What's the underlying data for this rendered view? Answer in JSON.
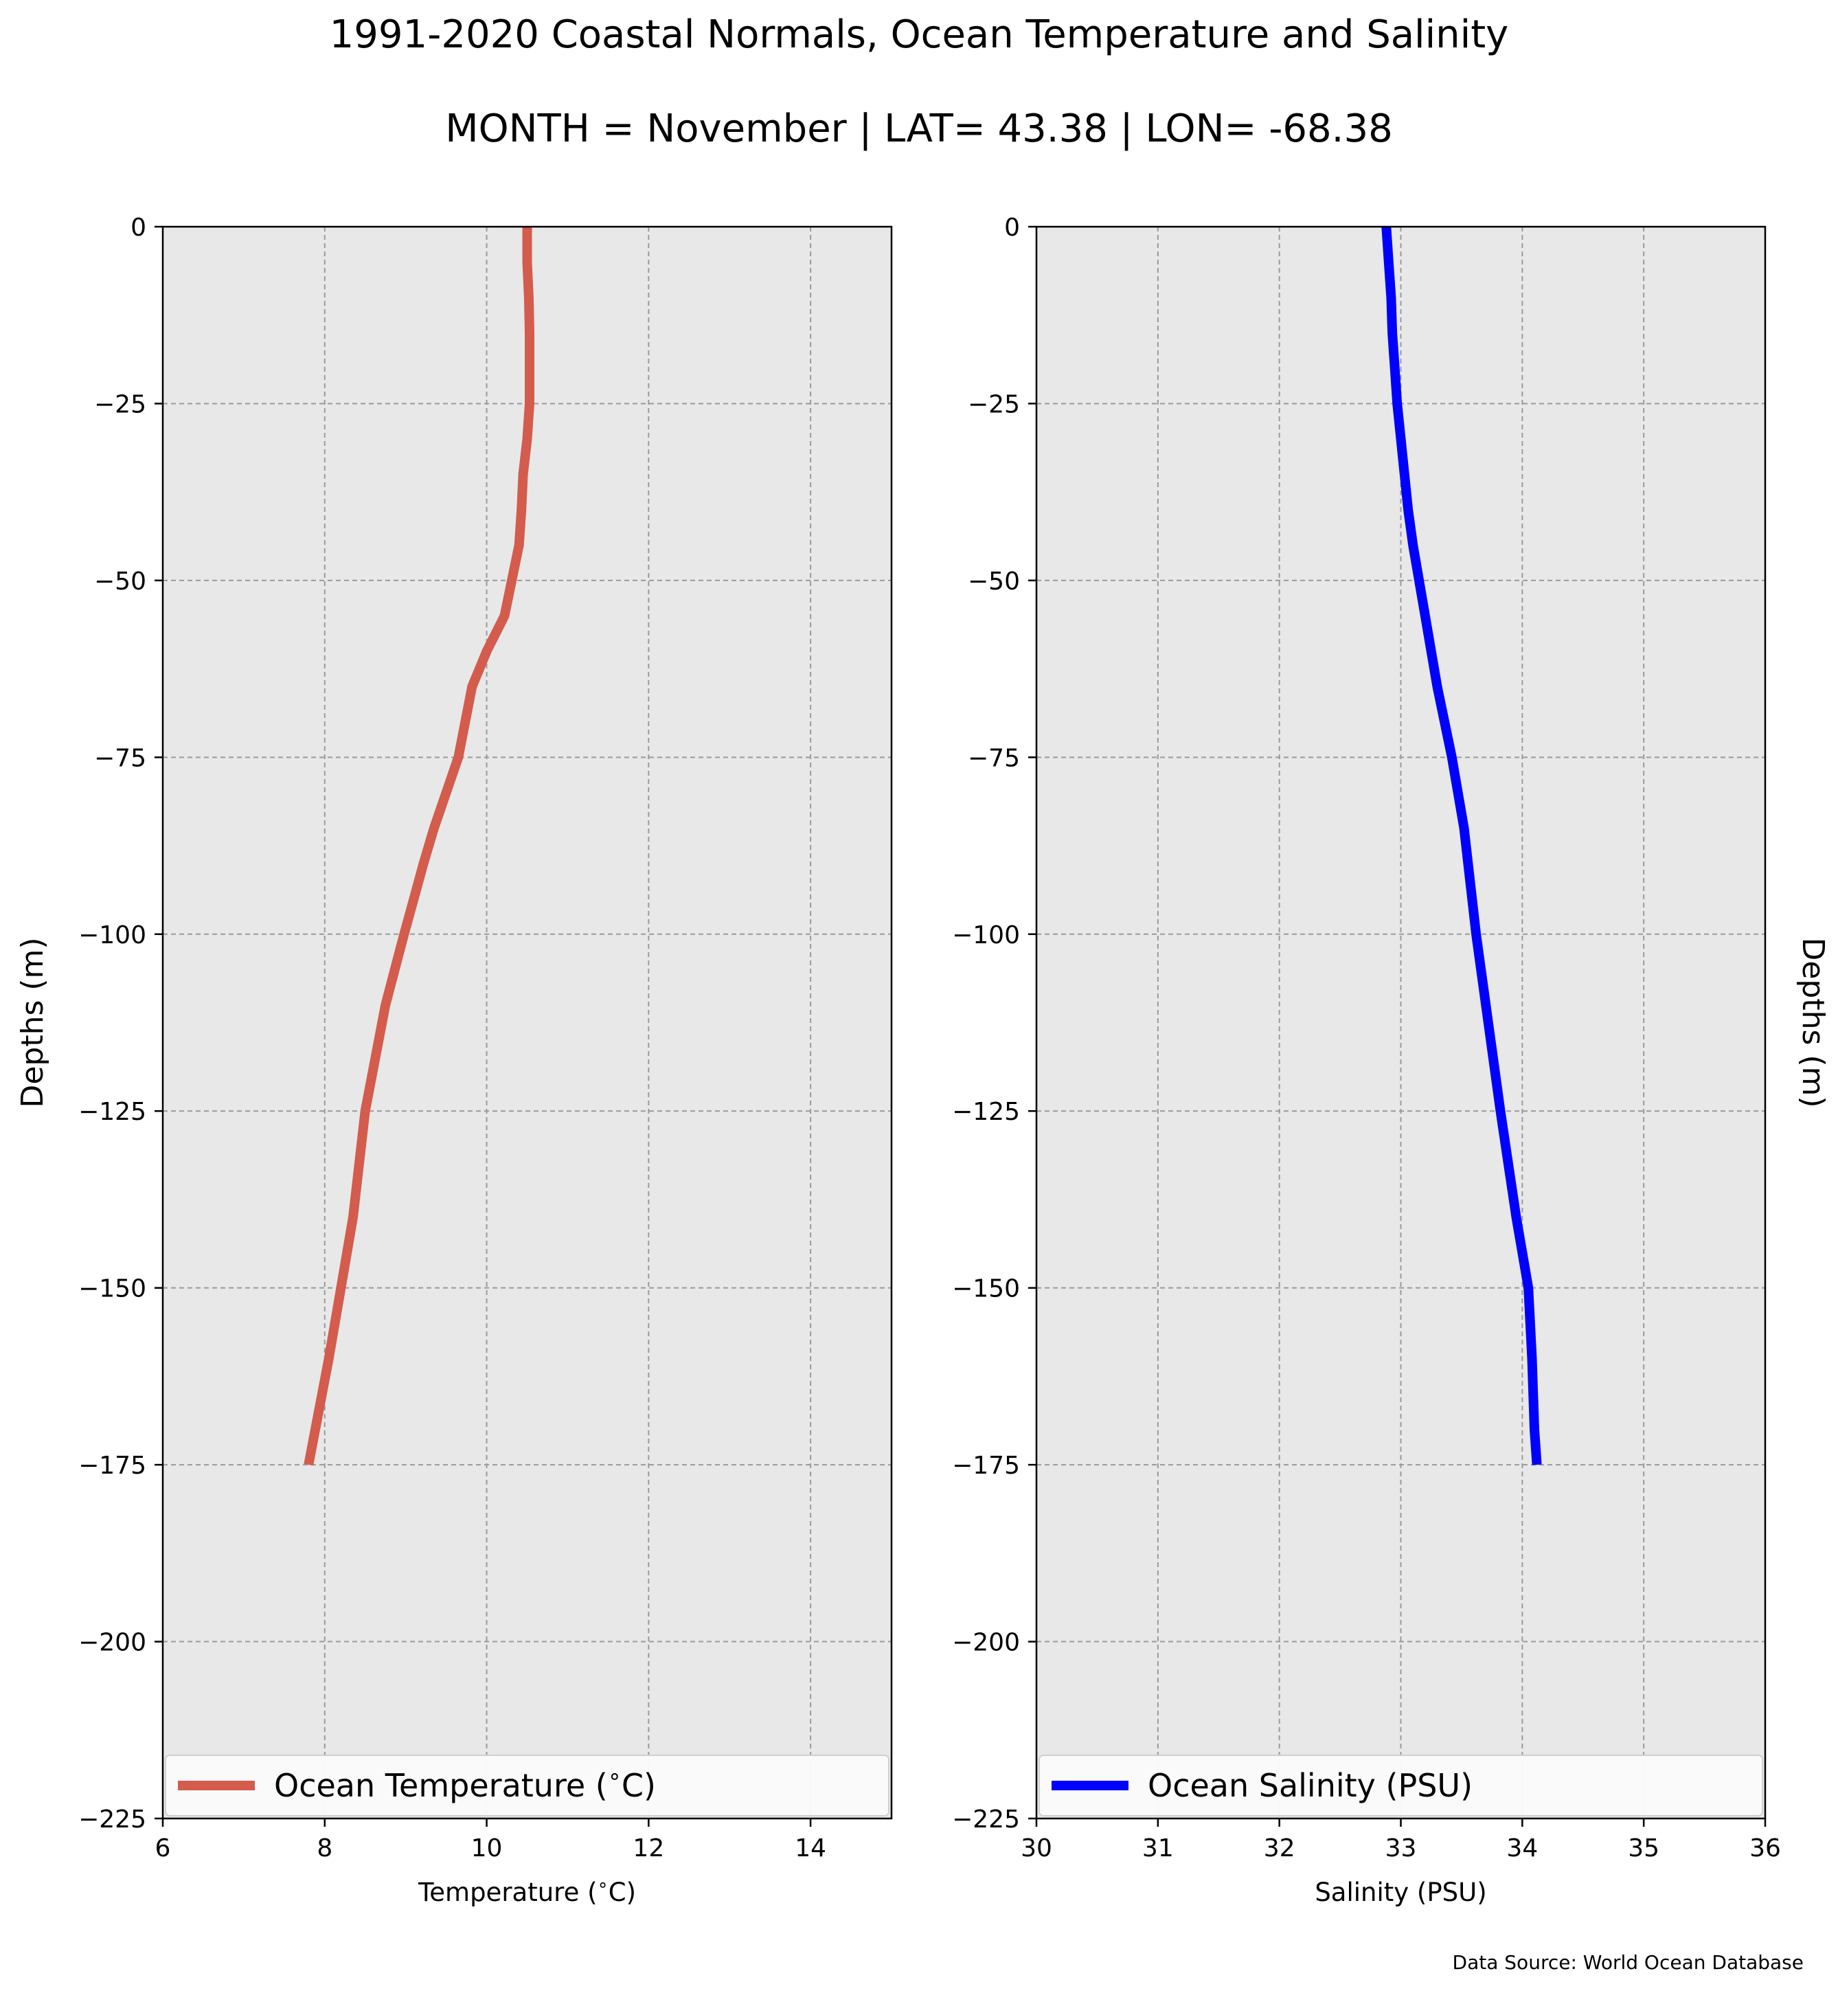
{
  "title": "1991-2020 Coastal Normals, Ocean Temperature and Salinity",
  "subtitle": "MONTH = November | LAT= 43.38 | LON= -68.38",
  "source_note": "Data Source: World Ocean Database",
  "chart_data": [
    {
      "type": "line",
      "xlabel": "Temperature ($^\\circ$C)",
      "ylabel": "Depths (m)",
      "xlim": [
        6,
        15
      ],
      "ylim": [
        -225,
        0
      ],
      "xticks": [
        6,
        8,
        10,
        12,
        14
      ],
      "yticks": [
        0,
        -25,
        -50,
        -75,
        -100,
        -125,
        -150,
        -175,
        -200,
        -225
      ],
      "grid": true,
      "legend_placement": "lower-center",
      "series": [
        {
          "name": "Ocean Temperature ($^\\circ$C)",
          "color": "#d35c4d",
          "x": [
            10.5,
            10.5,
            10.52,
            10.53,
            10.53,
            10.53,
            10.5,
            10.45,
            10.43,
            10.4,
            10.22,
            10.0,
            9.82,
            9.65,
            9.5,
            9.35,
            9.22,
            9.1,
            8.98,
            8.75,
            8.5,
            8.35,
            8.2,
            8.05,
            7.8
          ],
          "y": [
            0,
            -5,
            -10,
            -15,
            -20,
            -25,
            -30,
            -35,
            -40,
            -45,
            -55,
            -60,
            -65,
            -75,
            -80,
            -85,
            -90,
            -95,
            -100,
            -110,
            -125,
            -140,
            -150,
            -160,
            -175
          ]
        }
      ]
    },
    {
      "type": "line",
      "xlabel": "Salinity (PSU)",
      "ylabel": "Depths (m)",
      "xlim": [
        30,
        36
      ],
      "ylim": [
        -225,
        0
      ],
      "xticks": [
        30,
        31,
        32,
        33,
        34,
        35,
        36
      ],
      "yticks": [
        0,
        -25,
        -50,
        -75,
        -100,
        -125,
        -150,
        -175,
        -200,
        -225
      ],
      "grid": true,
      "legend_placement": "lower-center",
      "series": [
        {
          "name": "Ocean Salinity (PSU)",
          "color": "#0000ff",
          "x": [
            32.88,
            32.9,
            32.92,
            32.93,
            32.95,
            32.97,
            33.0,
            33.03,
            33.06,
            33.1,
            33.2,
            33.3,
            33.42,
            33.52,
            33.62,
            33.82,
            33.95,
            34.05,
            34.08,
            34.1,
            34.12
          ],
          "y": [
            0,
            -5,
            -10,
            -15,
            -20,
            -25,
            -30,
            -35,
            -40,
            -45,
            -55,
            -65,
            -75,
            -85,
            -100,
            -125,
            -140,
            -150,
            -160,
            -170,
            -175
          ]
        }
      ]
    }
  ]
}
